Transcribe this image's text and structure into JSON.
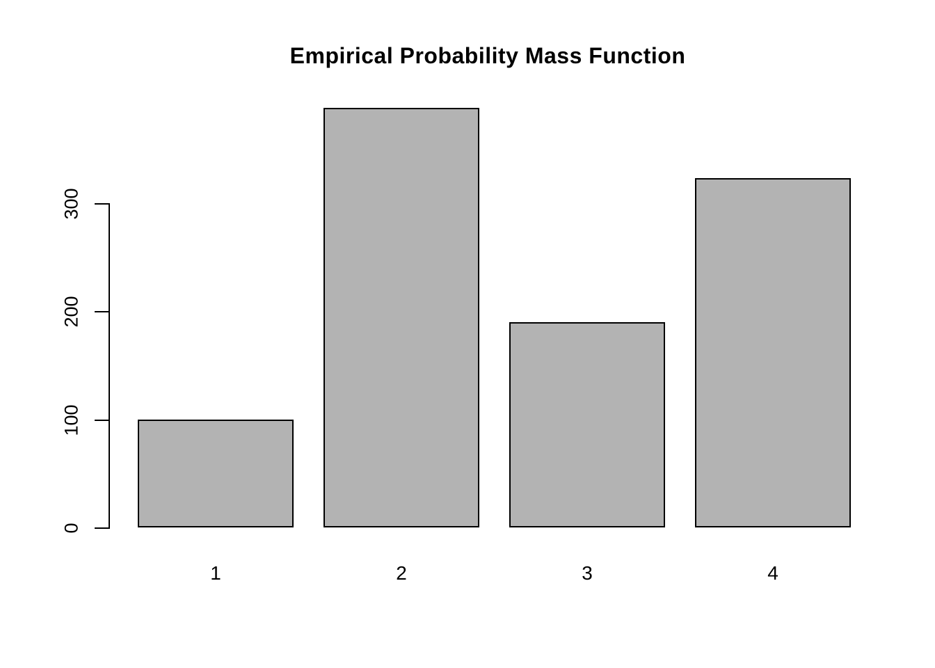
{
  "chart_data": {
    "type": "bar",
    "title": "Empirical Probability Mass Function",
    "categories": [
      "1",
      "2",
      "3",
      "4"
    ],
    "values": [
      100,
      388,
      190,
      323
    ],
    "xlabel": "",
    "ylabel": "",
    "yticks": [
      0,
      100,
      200,
      300
    ],
    "ylim": [
      0,
      390
    ],
    "grid": false,
    "legend": "none",
    "colors": {
      "bar_fill": "#b3b3b3",
      "bar_border": "#000000",
      "axis": "#000000",
      "text": "#000000",
      "background": "#ffffff"
    }
  }
}
